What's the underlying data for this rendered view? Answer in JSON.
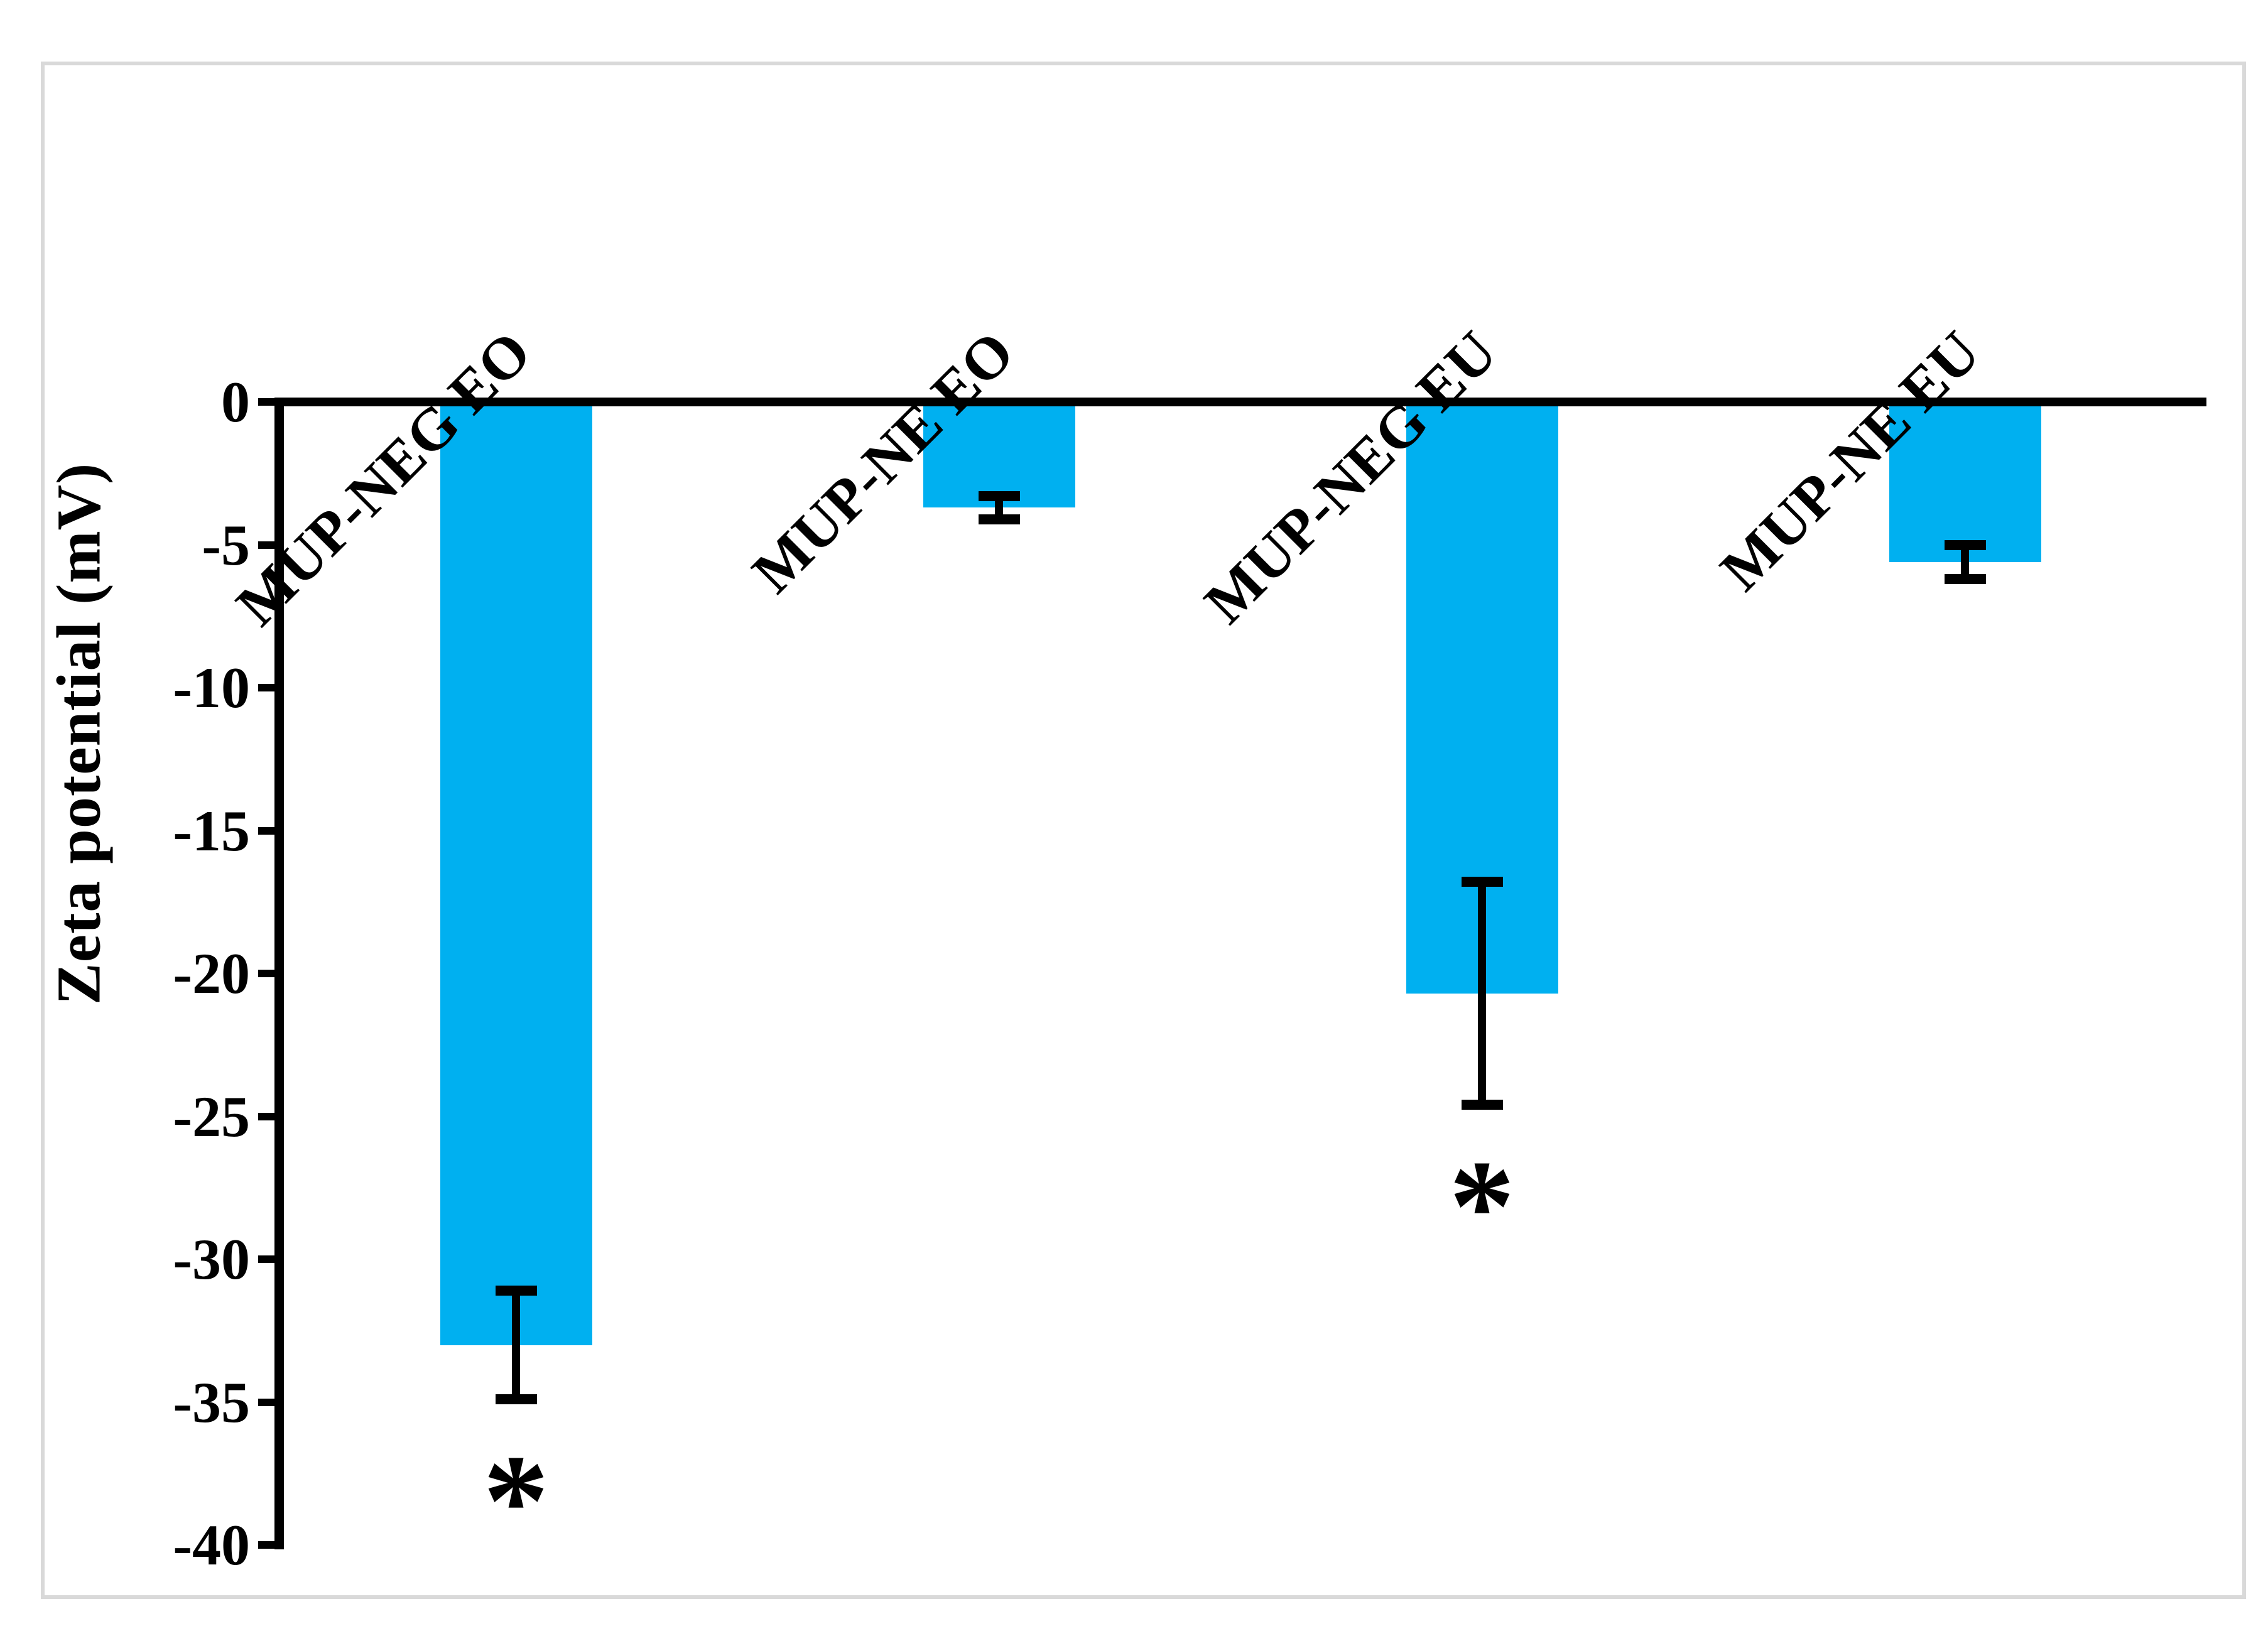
{
  "chart_data": {
    "type": "bar",
    "title": "",
    "categories": [
      "MUP-NEG EO",
      "MUP-NE EO",
      "MUP-NEG EU",
      "MUP-NE EU"
    ],
    "values": [
      -33.0,
      -3.7,
      -20.7,
      -5.6
    ],
    "errors": [
      1.9,
      0.4,
      3.9,
      0.6
    ],
    "significance": [
      true,
      false,
      true,
      false
    ],
    "significance_marker": "*",
    "xlabel": "",
    "ylabel": "Zeta potential (mV)",
    "ylim": [
      -40,
      0
    ],
    "ytick_step": 5,
    "ytick_labels": [
      "0",
      "-5",
      "-10",
      "-15",
      "-20",
      "-25",
      "-30",
      "-35",
      "-40"
    ],
    "grid": false,
    "legend": false,
    "category_label_rotation_deg": -45,
    "bar_color": "#00b0f0",
    "axis_color": "#000000",
    "error_bar_color": "#000000",
    "figure_border_color": "#d9d9d9",
    "background_color": "#ffffff"
  }
}
